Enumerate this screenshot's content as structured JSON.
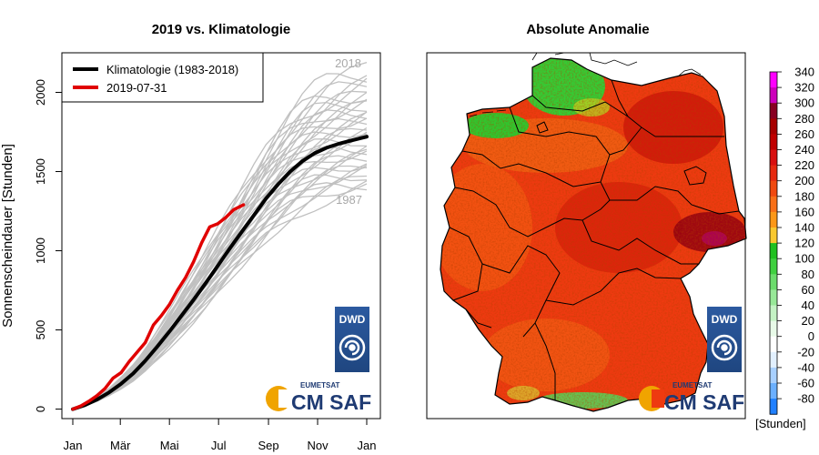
{
  "left_panel": {
    "title": "2019 vs. Klimatologie",
    "ylabel": "Sonnenscheindauer [Stunden]",
    "year_labels": {
      "max": "2018",
      "min": "1987"
    },
    "legend": [
      "Klimatologie (1983-2018)",
      "2019-07-31"
    ],
    "logos": {
      "dwd": "DWD",
      "eumetsat": "EUMETSAT",
      "cmsaf": "CM SAF"
    }
  },
  "right_panel": {
    "title": "Absolute Anomalie",
    "colorbar_unit": "[Stunden]",
    "logos": {
      "dwd": "DWD",
      "eumetsat": "EUMETSAT",
      "cmsaf": "CM SAF"
    }
  },
  "chart_data": [
    {
      "type": "line",
      "title": "2019 vs. Klimatologie",
      "xlabel": "",
      "ylabel": "Sonnenscheindauer [Stunden]",
      "x_ticks": [
        "Jan",
        "Mär",
        "Mai",
        "Jul",
        "Sep",
        "Nov",
        "Jan"
      ],
      "x_tick_days": [
        0,
        59,
        120,
        181,
        243,
        304,
        365
      ],
      "xlim": [
        0,
        365
      ],
      "y_ticks": [
        0,
        500,
        1000,
        1500,
        2000
      ],
      "ylim": [
        -60,
        2250
      ],
      "series": [
        {
          "name": "Klimatologie (1983-2018)",
          "color": "#000000",
          "x": [
            0,
            15,
            30,
            45,
            60,
            75,
            90,
            105,
            120,
            135,
            150,
            165,
            180,
            195,
            210,
            225,
            240,
            255,
            270,
            285,
            300,
            315,
            330,
            345,
            365
          ],
          "y": [
            0,
            25,
            60,
            105,
            160,
            225,
            305,
            395,
            490,
            590,
            690,
            795,
            905,
            1015,
            1120,
            1225,
            1330,
            1420,
            1500,
            1565,
            1615,
            1650,
            1675,
            1695,
            1720
          ]
        },
        {
          "name": "2019-07-31",
          "color": "#e00000",
          "x": [
            0,
            10,
            20,
            30,
            40,
            50,
            60,
            70,
            80,
            90,
            100,
            110,
            120,
            130,
            140,
            150,
            160,
            170,
            180,
            190,
            200,
            212
          ],
          "y": [
            0,
            20,
            50,
            85,
            130,
            195,
            230,
            300,
            360,
            420,
            530,
            590,
            660,
            750,
            830,
            930,
            1050,
            1150,
            1170,
            1210,
            1260,
            1290
          ]
        }
      ],
      "background_years": {
        "color": "#c0c0c0",
        "count": 36,
        "final_range": [
          1400,
          2110
        ]
      },
      "annotations": [
        "2018",
        "1987"
      ]
    },
    {
      "type": "heatmap",
      "title": "Absolute Anomalie",
      "colorbar": {
        "unit": "[Stunden]",
        "ticks": [
          340,
          320,
          300,
          280,
          260,
          240,
          220,
          200,
          180,
          160,
          140,
          120,
          100,
          80,
          60,
          40,
          20,
          0,
          -20,
          -40,
          -60,
          -80
        ],
        "colors": [
          "#ff00ff",
          "#cc00bb",
          "#880022",
          "#a60000",
          "#c00000",
          "#d81010",
          "#e62a10",
          "#f04a10",
          "#f87018",
          "#fc9818",
          "#f8c830",
          "#20c020",
          "#40d040",
          "#6cdc6c",
          "#98e898",
          "#c4f2c4",
          "#e8fae8",
          "#ffffff",
          "#e2f0ff",
          "#a8d0ff",
          "#6cb0ff",
          "#2080ff"
        ],
        "range": [
          -80,
          340
        ]
      },
      "summary": "Positive anomalies across Germany; mostly 180-260 hours, highest 280-340 hours in the Saxony/Lusatia east, lowest 80-140 hours in the northern coastal strip and the Alpine margin"
    }
  ]
}
